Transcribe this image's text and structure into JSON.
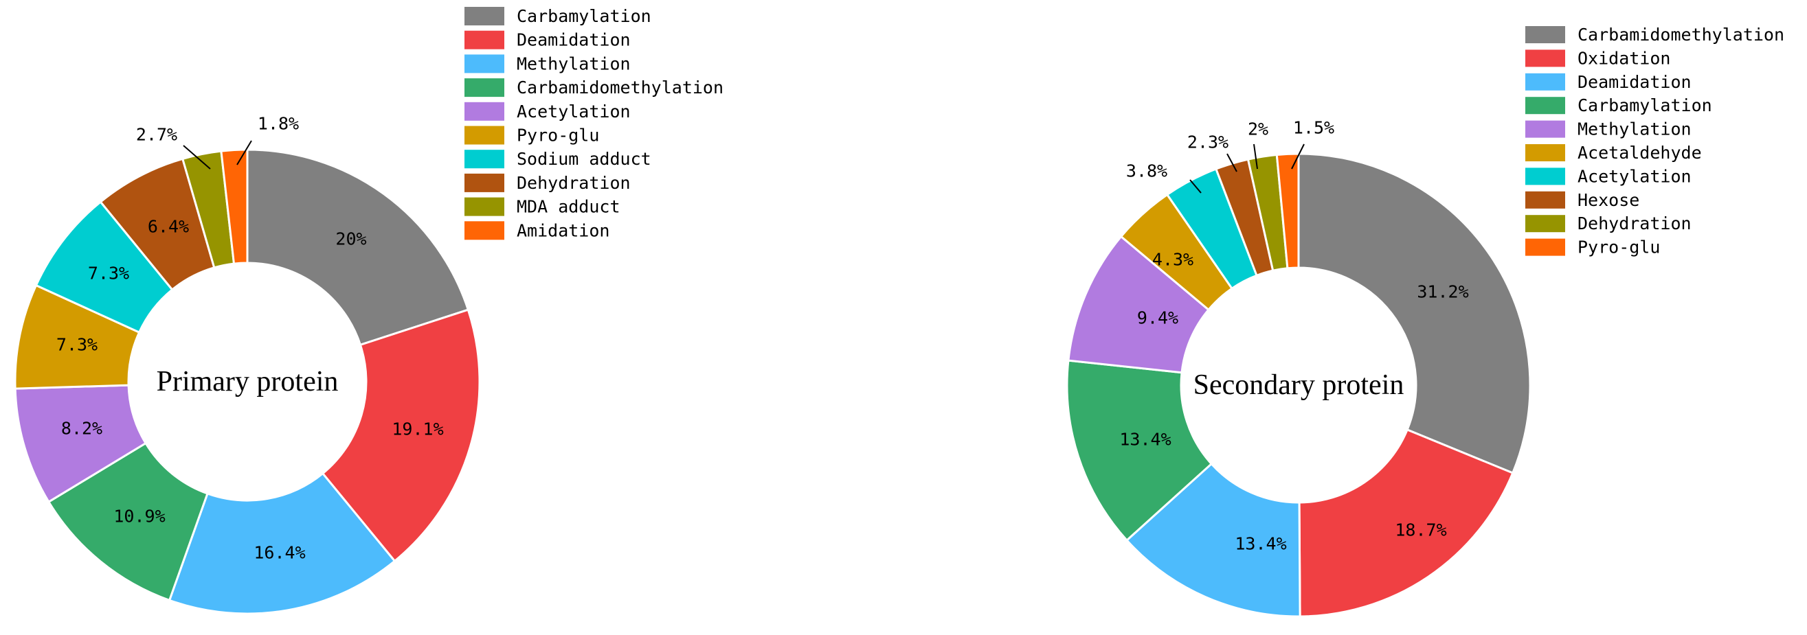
{
  "chart_data": [
    {
      "type": "pie",
      "variant": "donut",
      "center_text": "Primary protein",
      "legend_placement": "top-right",
      "slices": [
        {
          "name": "Carbamylation",
          "value": 20.0,
          "label": "20%",
          "color": "#808080"
        },
        {
          "name": "Deamidation",
          "value": 19.1,
          "label": "19.1%",
          "color": "#f04043"
        },
        {
          "name": "Methylation",
          "value": 16.4,
          "label": "16.4%",
          "color": "#4dbbfc"
        },
        {
          "name": "Carbamidomethylation",
          "value": 10.9,
          "label": "10.9%",
          "color": "#35ab6a"
        },
        {
          "name": "Acetylation",
          "value": 8.2,
          "label": "8.2%",
          "color": "#b17be0"
        },
        {
          "name": "Pyro-glu",
          "value": 7.3,
          "label": "7.3%",
          "color": "#d39b00"
        },
        {
          "name": "Sodium adduct",
          "value": 7.3,
          "label": "7.3%",
          "color": "#00cdd0"
        },
        {
          "name": "Dehydration",
          "value": 6.4,
          "label": "6.4%",
          "color": "#b05310"
        },
        {
          "name": "MDA adduct",
          "value": 2.7,
          "label": "2.7%",
          "color": "#969400"
        },
        {
          "name": "Amidation",
          "value": 1.8,
          "label": "1.8%",
          "color": "#ff6505"
        }
      ]
    },
    {
      "type": "pie",
      "variant": "donut",
      "center_text": "Secondary protein",
      "legend_placement": "top-right",
      "slices": [
        {
          "name": "Carbamidomethylation",
          "value": 31.2,
          "label": "31.2%",
          "color": "#808080"
        },
        {
          "name": "Oxidation",
          "value": 18.7,
          "label": "18.7%",
          "color": "#f04043"
        },
        {
          "name": "Deamidation",
          "value": 13.4,
          "label": "13.4%",
          "color": "#4dbbfc"
        },
        {
          "name": "Carbamylation",
          "value": 13.4,
          "label": "13.4%",
          "color": "#35ab6a"
        },
        {
          "name": "Methylation",
          "value": 9.4,
          "label": "9.4%",
          "color": "#b17be0"
        },
        {
          "name": "Acetaldehyde",
          "value": 4.3,
          "label": "4.3%",
          "color": "#d39b00"
        },
        {
          "name": "Acetylation",
          "value": 3.8,
          "label": "3.8%",
          "color": "#00cdd0"
        },
        {
          "name": "Hexose",
          "value": 2.3,
          "label": "2.3%",
          "color": "#b05310"
        },
        {
          "name": "Dehydration",
          "value": 2.0,
          "label": "2%",
          "color": "#969400"
        },
        {
          "name": "Pyro-glu",
          "value": 1.5,
          "label": "1.5%",
          "color": "#ff6505"
        }
      ]
    }
  ]
}
